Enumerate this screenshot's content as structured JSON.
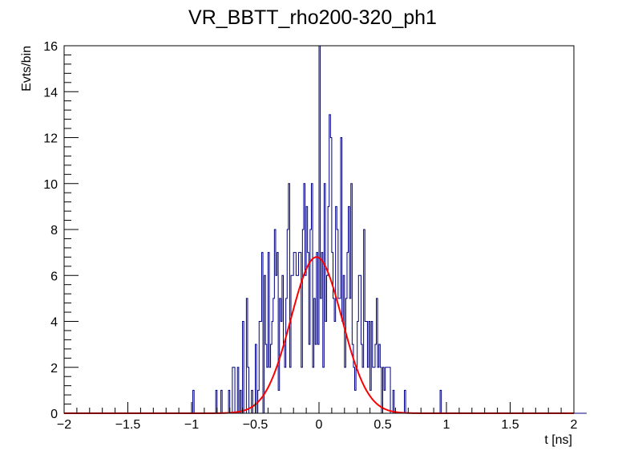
{
  "chart_data": {
    "type": "histogram",
    "title": "VR_BBTT_rho200-320_ph1",
    "xlabel": "t [ns]",
    "ylabel": "Evts/bin",
    "xlim": [
      -2,
      2
    ],
    "ylim": [
      0,
      16
    ],
    "x_ticks": [
      -2,
      -1.5,
      -1,
      -0.5,
      0,
      0.5,
      1,
      1.5,
      2
    ],
    "x_tick_labels": [
      "−2",
      "−1.5",
      "−1",
      "−0.5",
      "0",
      "0.5",
      "1",
      "1.5",
      "2"
    ],
    "y_ticks": [
      0,
      2,
      4,
      6,
      8,
      10,
      12,
      14,
      16
    ],
    "y_tick_labels": [
      "0",
      "2",
      "4",
      "6",
      "8",
      "10",
      "12",
      "14",
      "16"
    ],
    "grid": false,
    "histogram": {
      "bin_width": 0.01,
      "x_start": -2,
      "color": "#000080",
      "counts": [
        0,
        0,
        0,
        0,
        0,
        0,
        0,
        0,
        0,
        0,
        0,
        0,
        0,
        0,
        0,
        0,
        0,
        0,
        0,
        0,
        0,
        0,
        0,
        0,
        0,
        0,
        0,
        0,
        0,
        0,
        0,
        0,
        0,
        0,
        0,
        0,
        0,
        0,
        0,
        0,
        0,
        0,
        0,
        0,
        0,
        0,
        0,
        0,
        0,
        0,
        0,
        0,
        0,
        0,
        0,
        0,
        0,
        0,
        0,
        0,
        0,
        0,
        0,
        0,
        0,
        0,
        0,
        0,
        0,
        0,
        0,
        0,
        0,
        0,
        0,
        0,
        0,
        0,
        0,
        0,
        0,
        0,
        0,
        0,
        0,
        0,
        0,
        0,
        0,
        0,
        0,
        0,
        0,
        0,
        0,
        0,
        0,
        0,
        0,
        0,
        0,
        1,
        0,
        0,
        0,
        0,
        0,
        0,
        0,
        0,
        0,
        0,
        0,
        0,
        0,
        0,
        0,
        0,
        0,
        1,
        0,
        0,
        0,
        1,
        0,
        0,
        0,
        0,
        0,
        1,
        0,
        0,
        2,
        2,
        0,
        0,
        2,
        0,
        1,
        0,
        4,
        0,
        0,
        5,
        2,
        0,
        0,
        1,
        0,
        0,
        3,
        0,
        1,
        4,
        4,
        7,
        0,
        6,
        3,
        2,
        7,
        2,
        3,
        4,
        5,
        8,
        6,
        7,
        1,
        5,
        4,
        6,
        3,
        2,
        5,
        8,
        10,
        2,
        6,
        6,
        7,
        7,
        6,
        6,
        7,
        7,
        2,
        8,
        10,
        6,
        9,
        7,
        3,
        8,
        10,
        2,
        5,
        3,
        7,
        3,
        16,
        5,
        7,
        2,
        10,
        4,
        6,
        9,
        13,
        12,
        7,
        5,
        4,
        9,
        8,
        5,
        5,
        12,
        4,
        6,
        2,
        5,
        7,
        9,
        5,
        10,
        3,
        2,
        1,
        2,
        4,
        6,
        6,
        3,
        2,
        8,
        4,
        4,
        2,
        4,
        1,
        4,
        2,
        2,
        3,
        5,
        2,
        3,
        2,
        0,
        2,
        1,
        2,
        2,
        2,
        2,
        0,
        0,
        1,
        0,
        0,
        0,
        0,
        0,
        0,
        0,
        0,
        1,
        0,
        0,
        0,
        0,
        0,
        0,
        0,
        0,
        0,
        0,
        0,
        0,
        0,
        0,
        0,
        0,
        0,
        0,
        0,
        0,
        0,
        0,
        0,
        0,
        0,
        0,
        0,
        1,
        0,
        0,
        0,
        0,
        0,
        0,
        0,
        0,
        0,
        0,
        0,
        0,
        0,
        0,
        0,
        0,
        0,
        0,
        0,
        0,
        0,
        0,
        0,
        0,
        0,
        0,
        0,
        0,
        0,
        0,
        0,
        0,
        0,
        0,
        0,
        0,
        0,
        0,
        0,
        0,
        0,
        0,
        0,
        0,
        0,
        0,
        0,
        0,
        0,
        0,
        0,
        0,
        0,
        0,
        0,
        0,
        0,
        0,
        0,
        0,
        0,
        0,
        0,
        0,
        0,
        0,
        0,
        0,
        0,
        0,
        0,
        0,
        0,
        0,
        0,
        0,
        0,
        0,
        0,
        0,
        0,
        0,
        0,
        0,
        0,
        0,
        0,
        0,
        0,
        0,
        0,
        0,
        0,
        0,
        0,
        0,
        0,
        0,
        0,
        0,
        0,
        0,
        0,
        0,
        0,
        0,
        0,
        0,
        0,
        0,
        0,
        0,
        0,
        0
      ]
    },
    "fit": {
      "function": "gaussian",
      "color": "#ff0000",
      "amplitude": 6.8,
      "mean": -0.02,
      "sigma": 0.2
    }
  }
}
